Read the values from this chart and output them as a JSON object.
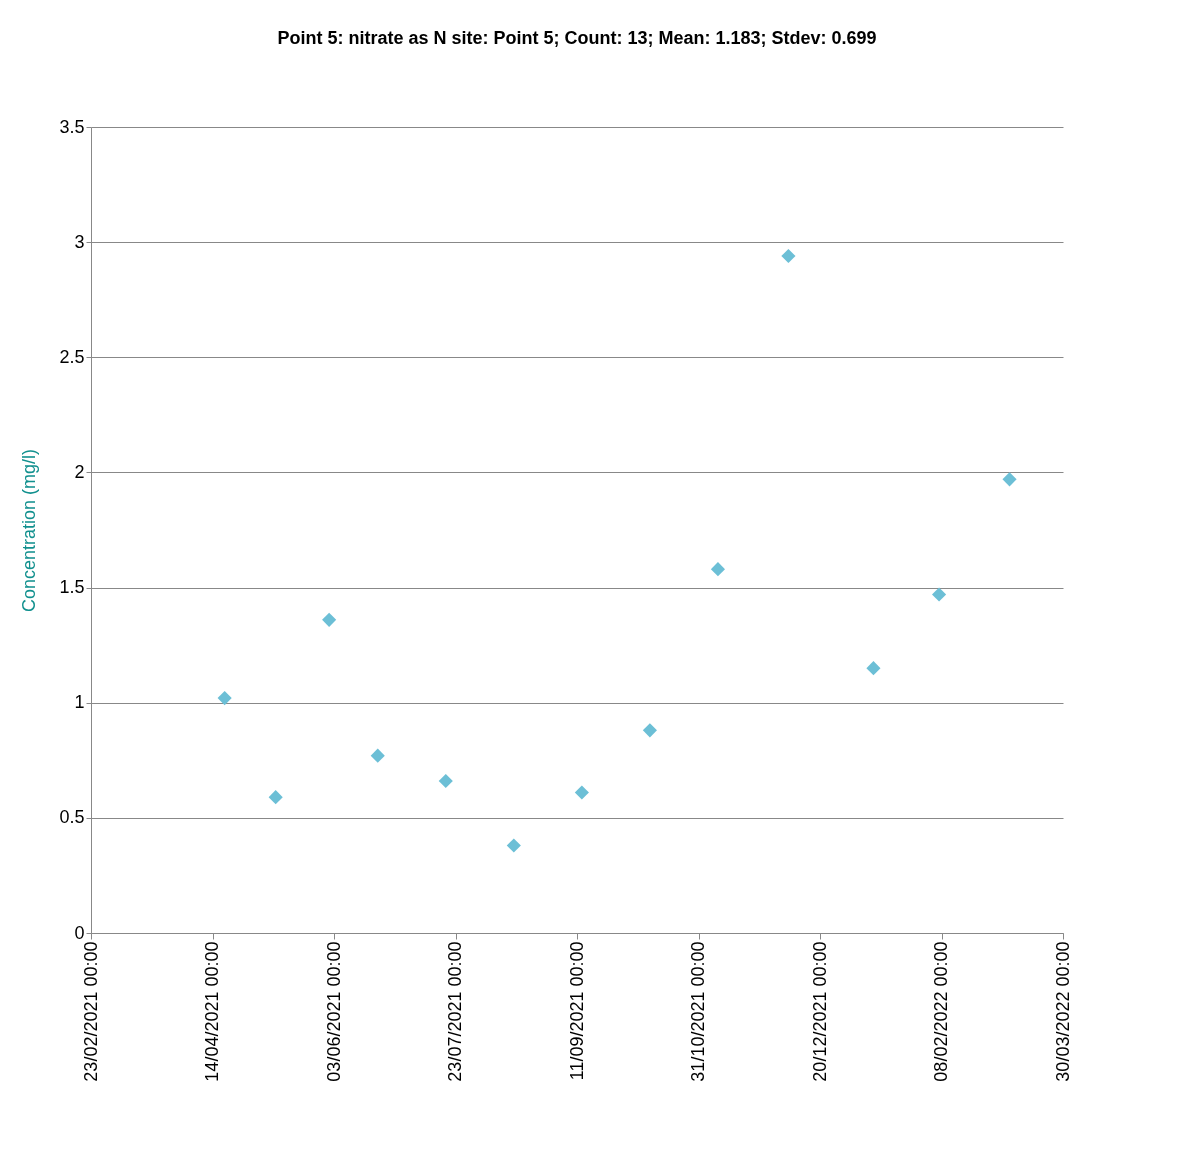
{
  "chart_data": {
    "type": "scatter",
    "title": "Point 5: nitrate as N site: Point 5; Count: 13; Mean: 1.183; Stdev: 0.699",
    "ylabel": "Concentration (mg/l)",
    "x": [
      "2021-04-19",
      "2021-05-10",
      "2021-06-01",
      "2021-06-21",
      "2021-07-19",
      "2021-08-16",
      "2021-09-13",
      "2021-10-11",
      "2021-11-08",
      "2021-12-07",
      "2022-01-11",
      "2022-02-07",
      "2022-03-08"
    ],
    "series": [
      {
        "color": "#6cbfd6",
        "values": [
          1.02,
          0.59,
          1.36,
          0.77,
          0.66,
          0.38,
          0.61,
          0.88,
          1.58,
          2.94,
          1.15,
          1.47,
          1.97
        ]
      }
    ],
    "xlim": [
      "2021-02-23",
      "2022-03-30"
    ],
    "xticks": [
      {
        "value": "2021-02-23",
        "label": "23/02/2021 00:00"
      },
      {
        "value": "2021-04-14",
        "label": "14/04/2021 00:00"
      },
      {
        "value": "2021-06-03",
        "label": "03/06/2021 00:00"
      },
      {
        "value": "2021-07-23",
        "label": "23/07/2021 00:00"
      },
      {
        "value": "2021-09-11",
        "label": "11/09/2021 00:00"
      },
      {
        "value": "2021-10-31",
        "label": "31/10/2021 00:00"
      },
      {
        "value": "2021-12-20",
        "label": "20/12/2021 00:00"
      },
      {
        "value": "2022-02-08",
        "label": "08/02/2022 00:00"
      },
      {
        "value": "2022-03-30",
        "label": "30/03/2022 00:00"
      }
    ],
    "ylim": [
      0,
      3.5
    ],
    "yticks": [
      0,
      0.5,
      1,
      1.5,
      2,
      2.5,
      3,
      3.5
    ],
    "grid": "y",
    "marker": "diamond"
  }
}
